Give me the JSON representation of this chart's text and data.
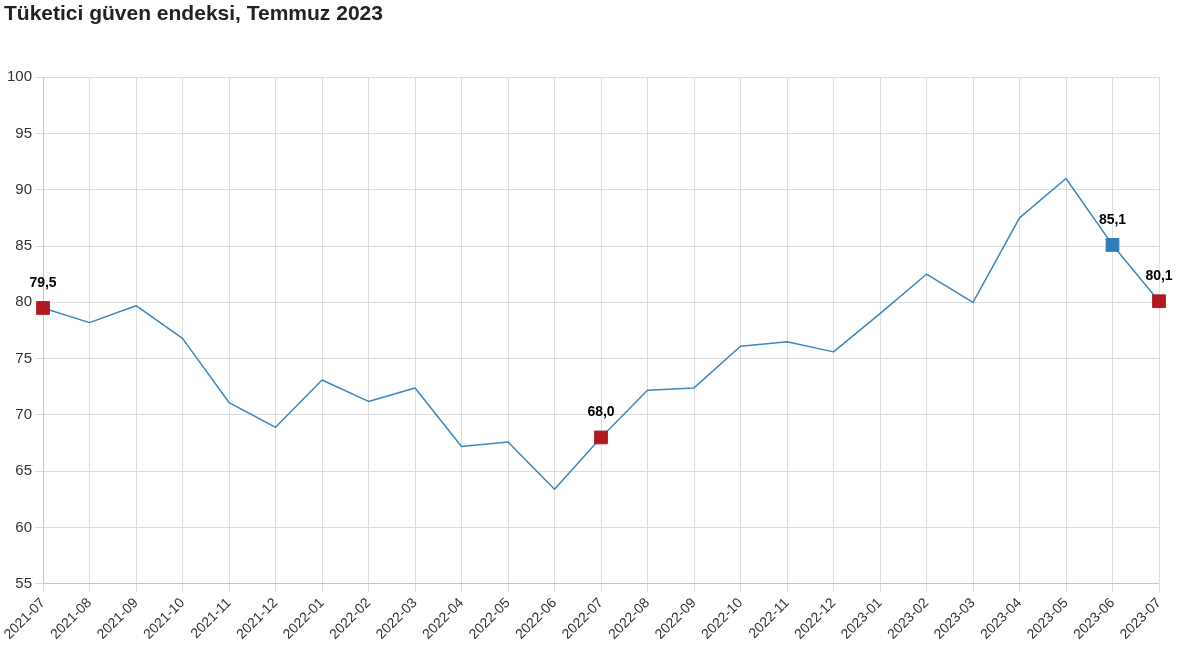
{
  "chart_data": {
    "type": "line",
    "title": "Tüketici güven endeksi, Temmuz 2023",
    "categories": [
      "2021-07",
      "2021-08",
      "2021-09",
      "2021-10",
      "2021-11",
      "2021-12",
      "2022-01",
      "2022-02",
      "2022-03",
      "2022-04",
      "2022-05",
      "2022-06",
      "2022-07",
      "2022-08",
      "2022-09",
      "2022-10",
      "2022-11",
      "2022-12",
      "2023-01",
      "2023-02",
      "2023-03",
      "2023-04",
      "2023-05",
      "2023-06",
      "2023-07"
    ],
    "series": [
      {
        "color": "#3a87c0",
        "marker": "none",
        "values": [
          79.5,
          78.2,
          79.7,
          76.8,
          71.1,
          68.9,
          73.1,
          71.2,
          72.4,
          67.2,
          67.6,
          63.4,
          68.0,
          72.2,
          72.4,
          76.1,
          76.5,
          75.6,
          79.0,
          82.5,
          80.0,
          87.5,
          91.0,
          85.1,
          80.1
        ]
      },
      {
        "type": "scatter",
        "marker": "square",
        "values": [
          79.5,
          null,
          null,
          null,
          null,
          null,
          null,
          null,
          null,
          null,
          null,
          null,
          68.0,
          null,
          null,
          null,
          null,
          null,
          null,
          null,
          null,
          null,
          null,
          85.1,
          80.1
        ],
        "colors": [
          "#b0191e",
          null,
          null,
          null,
          null,
          null,
          null,
          null,
          null,
          null,
          null,
          null,
          "#b0191e",
          null,
          null,
          null,
          null,
          null,
          null,
          null,
          null,
          null,
          null,
          "#2e7ebb",
          "#b0191e"
        ],
        "value_labels": [
          "79,5",
          null,
          null,
          null,
          null,
          null,
          null,
          null,
          null,
          null,
          null,
          null,
          "68,0",
          null,
          null,
          null,
          null,
          null,
          null,
          null,
          null,
          null,
          null,
          "85,1",
          "80,1"
        ]
      }
    ],
    "ylim": [
      55,
      100
    ],
    "yticks": [
      55,
      60,
      65,
      70,
      75,
      80,
      85,
      90,
      95,
      100
    ],
    "grid": true,
    "legend": false
  }
}
